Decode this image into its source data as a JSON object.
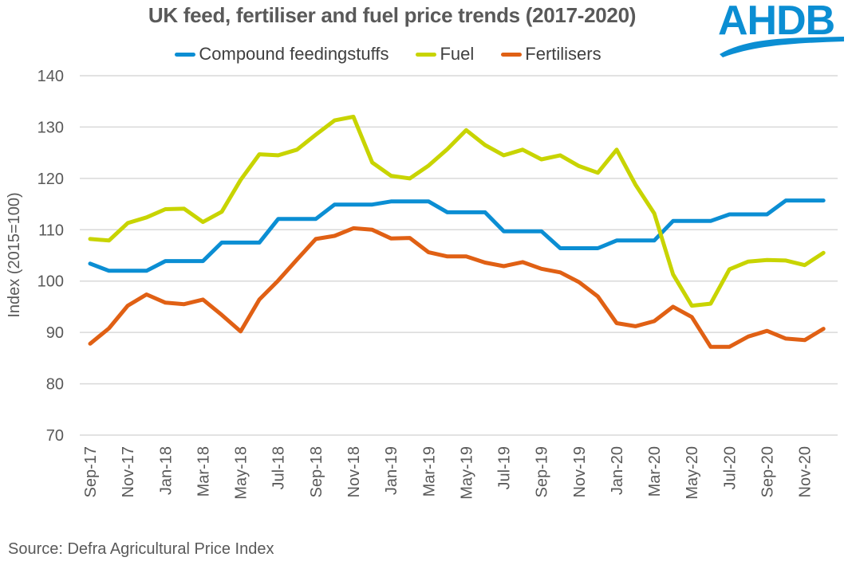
{
  "chart_data": {
    "type": "line",
    "title": "UK feed, fertiliser and fuel price trends (2017-2020)",
    "xlabel": "",
    "ylabel": "Index (2015=100)",
    "ylim": [
      70,
      140
    ],
    "yticks": [
      70,
      80,
      90,
      100,
      110,
      120,
      130,
      140
    ],
    "grid": true,
    "legend_position": "top-center",
    "x": [
      "Sep-17",
      "Oct-17",
      "Nov-17",
      "Dec-17",
      "Jan-18",
      "Feb-18",
      "Mar-18",
      "Apr-18",
      "May-18",
      "Jun-18",
      "Jul-18",
      "Aug-18",
      "Sep-18",
      "Oct-18",
      "Nov-18",
      "Dec-18",
      "Jan-19",
      "Feb-19",
      "Mar-19",
      "Apr-19",
      "May-19",
      "Jun-19",
      "Jul-19",
      "Aug-19",
      "Sep-19",
      "Oct-19",
      "Nov-19",
      "Dec-19",
      "Jan-20",
      "Feb-20",
      "Mar-20",
      "Apr-20",
      "May-20",
      "Jun-20",
      "Jul-20",
      "Aug-20",
      "Sep-20",
      "Oct-20",
      "Nov-20",
      "Dec-20"
    ],
    "xtick_labels": [
      "Sep-17",
      "Nov-17",
      "Jan-18",
      "Mar-18",
      "May-18",
      "Jul-18",
      "Sep-18",
      "Nov-18",
      "Jan-19",
      "Mar-19",
      "May-19",
      "Jul-19",
      "Sep-19",
      "Nov-19",
      "Jan-20",
      "Mar-20",
      "May-20",
      "Jul-20",
      "Sep-20",
      "Nov-20"
    ],
    "series": [
      {
        "name": "Compound feedingstuffs",
        "color": "#0b8ed3",
        "values": [
          103.4,
          102.0,
          102.0,
          102.0,
          103.9,
          103.9,
          103.9,
          107.5,
          107.5,
          107.5,
          112.1,
          112.1,
          112.1,
          114.9,
          114.9,
          114.9,
          115.5,
          115.5,
          115.5,
          113.4,
          113.4,
          113.4,
          109.7,
          109.7,
          109.7,
          106.4,
          106.4,
          106.4,
          107.9,
          107.9,
          107.9,
          111.7,
          111.7,
          111.7,
          113.0,
          113.0,
          113.0,
          115.7,
          115.7,
          115.7
        ]
      },
      {
        "name": "Fuel",
        "color": "#c8d400",
        "values": [
          108.2,
          107.9,
          111.3,
          112.4,
          114.0,
          114.1,
          111.5,
          113.5,
          119.7,
          124.7,
          124.5,
          125.6,
          128.5,
          131.3,
          132.0,
          123.1,
          120.5,
          120.0,
          122.5,
          125.7,
          129.4,
          126.5,
          124.5,
          125.6,
          123.7,
          124.5,
          122.4,
          121.1,
          125.6,
          118.8,
          113.2,
          101.3,
          95.2,
          95.6,
          102.3,
          103.8,
          104.1,
          104.0,
          103.1,
          105.5
        ]
      },
      {
        "name": "Fertilisers",
        "color": "#e06014",
        "values": [
          87.8,
          90.8,
          95.2,
          97.4,
          95.8,
          95.5,
          96.4,
          93.4,
          90.2,
          96.4,
          100.1,
          104.2,
          108.2,
          108.8,
          110.3,
          110.0,
          108.3,
          108.4,
          105.6,
          104.8,
          104.8,
          103.6,
          102.9,
          103.7,
          102.4,
          101.7,
          99.8,
          97.0,
          91.8,
          91.2,
          92.2,
          95.0,
          93.0,
          87.2,
          87.2,
          89.2,
          90.3,
          88.8,
          88.5,
          90.7
        ]
      }
    ]
  },
  "logo": {
    "text": "AHDB",
    "icon": "ahdb-wave-logo"
  },
  "source": "Source: Defra Agricultural Price Index"
}
